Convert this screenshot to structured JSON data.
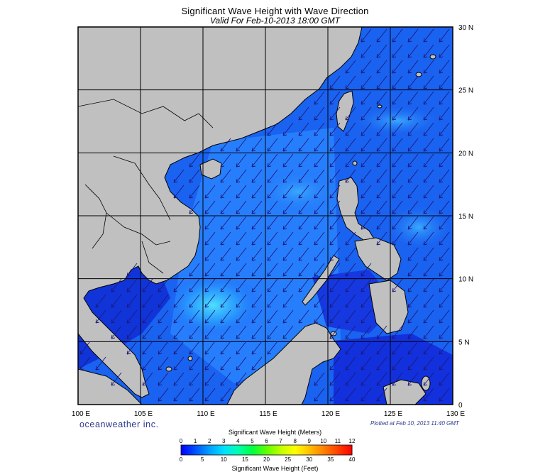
{
  "title": "Significant Wave Height with Wave Direction",
  "subtitle": "Valid For Feb-10-2013 18:00 GMT",
  "credit": "oceanweather inc.",
  "plotted": "Plotted at Feb 10, 2013 11:40 GMT",
  "map": {
    "lon_labels": [
      "100 E",
      "105 E",
      "110 E",
      "115 E",
      "120 E",
      "125 E",
      "130 E"
    ],
    "lat_labels": [
      "30 N",
      "25 N",
      "20 N",
      "15 N",
      "10 N",
      "5 N",
      "0"
    ],
    "lon_range": [
      100,
      130
    ],
    "lat_range": [
      0,
      30
    ],
    "grid_step_deg": 5,
    "land_color": "#c0c0c0",
    "water_colors": [
      "#1030e0",
      "#1860f0",
      "#2a90ff",
      "#4ec8ff"
    ],
    "arrow_color": "#1c1a7a",
    "dominant_wave_direction": "northeast to southwest"
  },
  "colorbar": {
    "meters_title": "Significant Wave Height (Meters)",
    "feet_title": "Significant Wave Height (Feet)",
    "meters_ticks": [
      "0",
      "1",
      "2",
      "3",
      "4",
      "5",
      "6",
      "7",
      "8",
      "9",
      "10",
      "11",
      "12"
    ],
    "feet_ticks": [
      "0",
      "5",
      "10",
      "15",
      "20",
      "25",
      "30",
      "35",
      "40"
    ],
    "colors": [
      "#0000ff",
      "#0050ff",
      "#00a0ff",
      "#00e0ff",
      "#00ffb0",
      "#00ff40",
      "#60ff00",
      "#c0ff00",
      "#ffff00",
      "#ffc000",
      "#ff8000",
      "#ff4000",
      "#ff0000"
    ]
  }
}
